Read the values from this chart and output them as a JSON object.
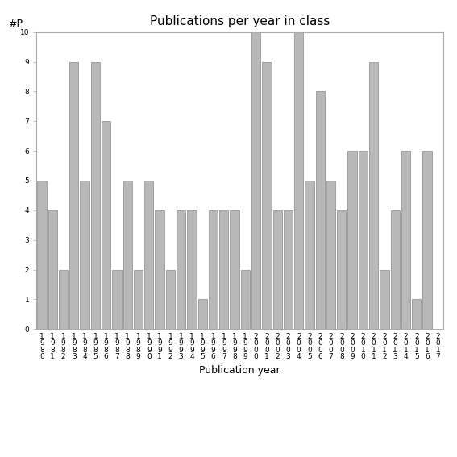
{
  "title": "Publications per year in class",
  "xlabel": "Publication year",
  "ylabel": "#P",
  "categories": [
    "1\n9\n8\n0",
    "1\n9\n8\n1",
    "1\n9\n8\n2",
    "1\n9\n8\n3",
    "1\n9\n8\n4",
    "1\n9\n8\n5",
    "1\n9\n8\n6",
    "1\n9\n8\n7",
    "1\n9\n8\n8",
    "1\n9\n8\n9",
    "1\n9\n9\n0",
    "1\n9\n9\n1",
    "1\n9\n9\n2",
    "1\n9\n9\n3",
    "1\n9\n9\n4",
    "1\n9\n9\n5",
    "1\n9\n9\n6",
    "1\n9\n9\n7",
    "1\n9\n9\n8",
    "1\n9\n9\n9",
    "2\n0\n0\n0",
    "2\n0\n0\n1",
    "2\n0\n0\n2",
    "2\n0\n0\n3",
    "2\n0\n0\n4",
    "2\n0\n0\n5",
    "2\n0\n0\n6",
    "2\n0\n0\n7",
    "2\n0\n0\n8",
    "2\n0\n0\n9",
    "2\n0\n1\n0",
    "2\n0\n1\n1",
    "2\n0\n1\n2",
    "2\n0\n1\n3",
    "2\n0\n1\n4",
    "2\n0\n1\n5",
    "2\n0\n1\n6",
    "2\n0\n1\n7"
  ],
  "values": [
    5,
    4,
    2,
    9,
    5,
    9,
    7,
    2,
    5,
    2,
    5,
    4,
    2,
    4,
    4,
    1,
    4,
    4,
    4,
    2,
    10,
    9,
    4,
    4,
    10,
    5,
    8,
    5,
    4,
    6,
    6,
    9,
    2,
    4,
    6,
    1,
    6,
    0
  ],
  "bar_color": "#b8b8b8",
  "bar_edge_color": "#888888",
  "ylim": [
    0,
    10
  ],
  "yticks": [
    0,
    1,
    2,
    3,
    4,
    5,
    6,
    7,
    8,
    9,
    10
  ],
  "bg_color": "#ffffff",
  "title_fontsize": 11,
  "axis_label_fontsize": 9,
  "tick_fontsize": 6.5
}
